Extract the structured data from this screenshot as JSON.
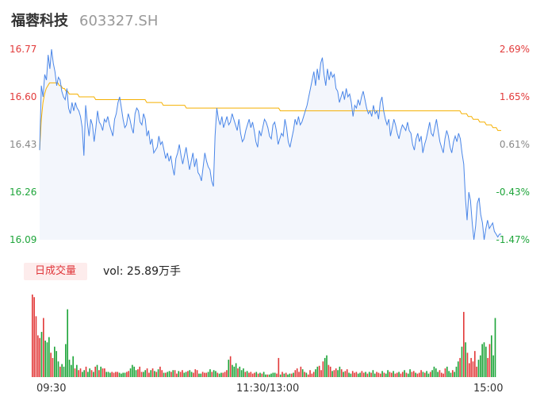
{
  "header": {
    "name": "福蓉科技",
    "code": "603327.SH"
  },
  "volume_panel": {
    "tag": "日成交量",
    "vol_text": "vol: 25.89万手"
  },
  "colors": {
    "up": "#e23a3a",
    "down": "#1ea53a",
    "neutral": "#888888",
    "price_line": "#4a86e8",
    "avg_line": "#f5b000"
  },
  "chart_data": [
    {
      "type": "line",
      "series": [
        {
          "values": [
            16.41,
            16.64,
            16.6,
            16.68,
            16.66,
            16.75,
            16.7,
            16.77,
            16.72,
            16.69,
            16.64,
            16.67,
            16.66,
            16.62,
            16.6,
            16.59,
            16.63,
            16.56,
            16.54,
            16.58,
            16.55,
            16.58,
            16.56,
            16.55,
            16.53,
            16.49,
            16.39,
            16.57,
            16.51,
            16.46,
            16.52,
            16.5,
            16.44,
            16.49,
            16.55,
            16.51,
            16.5,
            16.48,
            16.52,
            16.51,
            16.53,
            16.5,
            16.48,
            16.46,
            16.52,
            16.54,
            16.58,
            16.6,
            16.56,
            16.52,
            16.49,
            16.5,
            16.54,
            16.52,
            16.49,
            16.47,
            16.54,
            16.56,
            16.55,
            16.51,
            16.5,
            16.54,
            16.52,
            16.46,
            16.48,
            16.43,
            16.45,
            16.4,
            16.41,
            16.42,
            16.46,
            16.43,
            16.44,
            16.41,
            16.38,
            16.4,
            16.37,
            16.39,
            16.35,
            16.32,
            16.38,
            16.4,
            16.43,
            16.39,
            16.36,
            16.39,
            16.42,
            16.38,
            16.34,
            16.37,
            16.4,
            16.35,
            16.38,
            16.33,
            16.32,
            16.3,
            16.35,
            16.4,
            16.37,
            16.35,
            16.34,
            16.3,
            16.28,
            16.46,
            16.56,
            16.52,
            16.5,
            16.53,
            16.49,
            16.51,
            16.53,
            16.5,
            16.51,
            16.54,
            16.52,
            16.5,
            16.48,
            16.52,
            16.47,
            16.44,
            16.45,
            16.48,
            16.5,
            16.52,
            16.49,
            16.51,
            16.48,
            16.44,
            16.42,
            16.48,
            16.46,
            16.49,
            16.52,
            16.51,
            16.49,
            16.46,
            16.45,
            16.5,
            16.51,
            16.48,
            16.43,
            16.45,
            16.47,
            16.46,
            16.52,
            16.49,
            16.44,
            16.42,
            16.45,
            16.48,
            16.52,
            16.5,
            16.53,
            16.5,
            16.51,
            16.53,
            16.55,
            16.57,
            16.6,
            16.63,
            16.66,
            16.69,
            16.64,
            16.7,
            16.66,
            16.72,
            16.74,
            16.68,
            16.64,
            16.7,
            16.66,
            16.69,
            16.67,
            16.68,
            16.63,
            16.62,
            16.58,
            16.6,
            16.62,
            16.59,
            16.63,
            16.6,
            16.61,
            16.58,
            16.53,
            16.57,
            16.56,
            16.59,
            16.57,
            16.6,
            16.62,
            16.59,
            16.56,
            16.54,
            16.55,
            16.53,
            16.57,
            16.54,
            16.55,
            16.52,
            16.58,
            16.6,
            16.55,
            16.52,
            16.5,
            16.52,
            16.46,
            16.49,
            16.52,
            16.5,
            16.47,
            16.45,
            16.48,
            16.5,
            16.49,
            16.48,
            16.51,
            16.48,
            16.47,
            16.43,
            16.41,
            16.45,
            16.47,
            16.44,
            16.46,
            16.4,
            16.43,
            16.45,
            16.48,
            16.51,
            16.47,
            16.46,
            16.49,
            16.52,
            16.48,
            16.44,
            16.42,
            16.4,
            16.45,
            16.48,
            16.46,
            16.42,
            16.4,
            16.44,
            16.46,
            16.44,
            16.47,
            16.45,
            16.4,
            16.36,
            16.24,
            16.16,
            16.26,
            16.23,
            16.15,
            16.09,
            16.14,
            16.22,
            16.24,
            16.18,
            16.15,
            16.09,
            16.13,
            16.16,
            16.13,
            16.14,
            16.15,
            16.12,
            16.11,
            16.1,
            16.11,
            16.11
          ]
        },
        {
          "values": [
            16.41,
            16.52,
            16.58,
            16.61,
            16.63,
            16.64,
            16.65,
            16.65,
            16.65,
            16.65,
            16.65,
            16.65,
            16.64,
            16.64,
            16.63,
            16.63,
            16.62,
            16.62,
            16.61,
            16.61,
            16.61,
            16.61,
            16.61,
            16.61,
            16.6,
            16.6,
            16.6,
            16.6,
            16.6,
            16.6,
            16.6,
            16.6,
            16.6,
            16.6,
            16.59,
            16.59,
            16.59,
            16.59,
            16.59,
            16.59,
            16.59,
            16.59,
            16.59,
            16.59,
            16.59,
            16.59,
            16.59,
            16.59,
            16.59,
            16.59,
            16.59,
            16.59,
            16.59,
            16.59,
            16.59,
            16.59,
            16.59,
            16.59,
            16.59,
            16.59,
            16.59,
            16.59,
            16.59,
            16.59,
            16.59,
            16.58,
            16.58,
            16.58,
            16.58,
            16.58,
            16.58,
            16.58,
            16.58,
            16.58,
            16.58,
            16.57,
            16.57,
            16.57,
            16.57,
            16.57,
            16.57,
            16.57,
            16.57,
            16.57,
            16.57,
            16.57,
            16.57,
            16.57,
            16.57,
            16.56,
            16.56,
            16.56,
            16.56,
            16.56,
            16.56,
            16.56,
            16.56,
            16.56,
            16.56,
            16.56,
            16.56,
            16.56,
            16.56,
            16.56,
            16.56,
            16.56,
            16.56,
            16.56,
            16.56,
            16.56,
            16.56,
            16.56,
            16.56,
            16.56,
            16.56,
            16.56,
            16.56,
            16.56,
            16.56,
            16.56,
            16.56,
            16.56,
            16.56,
            16.56,
            16.56,
            16.56,
            16.56,
            16.56,
            16.56,
            16.56,
            16.56,
            16.56,
            16.56,
            16.56,
            16.56,
            16.56,
            16.56,
            16.56,
            16.56,
            16.56,
            16.56,
            16.56,
            16.56,
            16.56,
            16.56,
            16.56,
            16.55,
            16.55,
            16.55,
            16.55,
            16.55,
            16.55,
            16.55,
            16.55,
            16.55,
            16.55,
            16.55,
            16.55,
            16.55,
            16.55,
            16.55,
            16.55,
            16.55,
            16.55,
            16.55,
            16.55,
            16.55,
            16.55,
            16.55,
            16.55,
            16.55,
            16.55,
            16.55,
            16.55,
            16.55,
            16.55,
            16.55,
            16.55,
            16.55,
            16.55,
            16.55,
            16.55,
            16.55,
            16.55,
            16.55,
            16.55,
            16.55,
            16.55,
            16.55,
            16.55,
            16.55,
            16.55,
            16.55,
            16.55,
            16.55,
            16.55,
            16.55,
            16.55,
            16.55,
            16.55,
            16.55,
            16.55,
            16.55,
            16.55,
            16.55,
            16.55,
            16.55,
            16.55,
            16.55,
            16.55,
            16.55,
            16.55,
            16.55,
            16.55,
            16.55,
            16.55,
            16.55,
            16.55,
            16.55,
            16.55,
            16.55,
            16.55,
            16.55,
            16.55,
            16.55,
            16.55,
            16.55,
            16.55,
            16.55,
            16.55,
            16.55,
            16.55,
            16.55,
            16.55,
            16.55,
            16.55,
            16.55,
            16.55,
            16.55,
            16.55,
            16.55,
            16.55,
            16.55,
            16.55,
            16.55,
            16.55,
            16.55,
            16.55,
            16.55,
            16.55,
            16.55,
            16.55,
            16.55,
            16.55,
            16.55,
            16.55,
            16.54,
            16.54,
            16.54,
            16.54,
            16.53,
            16.53,
            16.53,
            16.52,
            16.52,
            16.52,
            16.52,
            16.51,
            16.51,
            16.51,
            16.51,
            16.5,
            16.5,
            16.5,
            16.5,
            16.49,
            16.49,
            16.49,
            16.48,
            16.48,
            16.48
          ]
        }
      ],
      "ylim": [
        16.09,
        16.77
      ],
      "y_ticks_left": [
        "16.77",
        "16.60",
        "16.43",
        "16.26",
        "16.09"
      ],
      "y_ticks_right": [
        "2.69%",
        "1.65%",
        "0.61%",
        "-0.43%",
        "-1.47%"
      ],
      "x_ticks": [
        "09:30",
        "11:30/13:00",
        "15:00"
      ]
    },
    {
      "type": "bar",
      "values": [
        95,
        92,
        70,
        48,
        45,
        52,
        68,
        42,
        40,
        46,
        28,
        22,
        35,
        30,
        18,
        12,
        15,
        12,
        38,
        78,
        20,
        14,
        24,
        10,
        14,
        8,
        10,
        6,
        8,
        12,
        6,
        10,
        8,
        6,
        12,
        14,
        8,
        12,
        10,
        10,
        6,
        6,
        5,
        6,
        5,
        6,
        6,
        5,
        4,
        5,
        5,
        6,
        7,
        10,
        14,
        12,
        8,
        9,
        12,
        6,
        6,
        8,
        10,
        5,
        8,
        10,
        7,
        6,
        9,
        12,
        8,
        5,
        5,
        6,
        7,
        6,
        8,
        8,
        4,
        7,
        6,
        8,
        5,
        6,
        7,
        8,
        6,
        5,
        9,
        8,
        4,
        4,
        6,
        5,
        5,
        6,
        9,
        6,
        8,
        7,
        5,
        4,
        5,
        5,
        6,
        8,
        20,
        24,
        14,
        12,
        16,
        10,
        12,
        8,
        10,
        6,
        7,
        5,
        6,
        4,
        5,
        6,
        4,
        5,
        4,
        6,
        3,
        3,
        3,
        4,
        5,
        5,
        4,
        22,
        3,
        6,
        4,
        5,
        3,
        4,
        4,
        5,
        8,
        10,
        6,
        12,
        9,
        6,
        5,
        3,
        8,
        4,
        6,
        9,
        12,
        13,
        8,
        18,
        22,
        25,
        14,
        12,
        7,
        8,
        10,
        8,
        12,
        9,
        6,
        7,
        9,
        5,
        4,
        7,
        5,
        6,
        4,
        5,
        7,
        5,
        6,
        4,
        6,
        5,
        8,
        4,
        6,
        5,
        4,
        7,
        5,
        4,
        8,
        6,
        5,
        7,
        4,
        5,
        6,
        4,
        6,
        8,
        5,
        4,
        9,
        6,
        7,
        5,
        4,
        5,
        8,
        6,
        5,
        7,
        4,
        6,
        8,
        12,
        10,
        6,
        8,
        5,
        4,
        10,
        12,
        7,
        5,
        8,
        6,
        12,
        18,
        22,
        35,
        75,
        40,
        28,
        16,
        22,
        18,
        30,
        12,
        20,
        25,
        38,
        40,
        35,
        22,
        38,
        48,
        25,
        68
      ],
      "colors": [
        "up",
        "up",
        "up",
        "up",
        "up",
        "down",
        "up",
        "down",
        "down",
        "down",
        "up",
        "up",
        "down",
        "down",
        "down",
        "up",
        "down",
        "down",
        "down",
        "down",
        "down",
        "down",
        "down",
        "up",
        "down",
        "up",
        "up",
        "down",
        "down",
        "up",
        "down",
        "down",
        "up",
        "down",
        "up",
        "down",
        "up",
        "down",
        "up",
        "up",
        "down",
        "down",
        "down",
        "up",
        "up",
        "up",
        "up",
        "down",
        "down",
        "down",
        "down",
        "up",
        "up",
        "down",
        "down",
        "down",
        "down",
        "up",
        "up",
        "up",
        "down",
        "down",
        "up",
        "up",
        "down",
        "up",
        "down",
        "up",
        "down",
        "up",
        "up",
        "down",
        "up",
        "down",
        "down",
        "up",
        "down",
        "up",
        "up",
        "down",
        "up",
        "up",
        "down",
        "down",
        "up",
        "down",
        "down",
        "up",
        "up",
        "up",
        "down",
        "down",
        "up",
        "up",
        "up",
        "down",
        "down",
        "up",
        "down",
        "down",
        "up",
        "down",
        "down",
        "up",
        "up",
        "up",
        "down",
        "up",
        "down",
        "down",
        "down",
        "up",
        "down",
        "down",
        "down",
        "up",
        "down",
        "up",
        "up",
        "up",
        "up",
        "down",
        "up",
        "down",
        "up",
        "down",
        "down",
        "up",
        "down",
        "down",
        "down",
        "down",
        "up",
        "up",
        "down",
        "up",
        "down",
        "up",
        "down",
        "down",
        "up",
        "down",
        "up",
        "up",
        "up",
        "up",
        "down",
        "up",
        "down",
        "up",
        "up",
        "up",
        "up",
        "down",
        "down",
        "up",
        "up",
        "up",
        "down",
        "down",
        "up",
        "up",
        "down",
        "up",
        "up",
        "down",
        "down",
        "up",
        "down",
        "up",
        "up",
        "down",
        "down",
        "up",
        "up",
        "up",
        "down",
        "down",
        "up",
        "up",
        "down",
        "up",
        "down",
        "up",
        "down",
        "down",
        "up",
        "up",
        "up",
        "down",
        "up",
        "down",
        "down",
        "up",
        "up",
        "down",
        "up",
        "up",
        "down",
        "up",
        "up",
        "down",
        "up",
        "down",
        "down",
        "up",
        "up",
        "down",
        "up",
        "up",
        "up",
        "down",
        "up",
        "down",
        "down",
        "up",
        "down",
        "down",
        "down",
        "down",
        "up",
        "up",
        "up",
        "up",
        "down",
        "down",
        "down",
        "up",
        "down",
        "down",
        "down",
        "up",
        "down",
        "up",
        "down",
        "up",
        "up",
        "up",
        "up",
        "up",
        "up",
        "down",
        "down",
        "down",
        "down",
        "down",
        "up",
        "up",
        "down",
        "down",
        "down",
        "up",
        "down",
        "up",
        "up",
        "up",
        "down",
        "up",
        "down",
        "down",
        "down",
        "down",
        "down",
        "neutral"
      ]
    }
  ]
}
